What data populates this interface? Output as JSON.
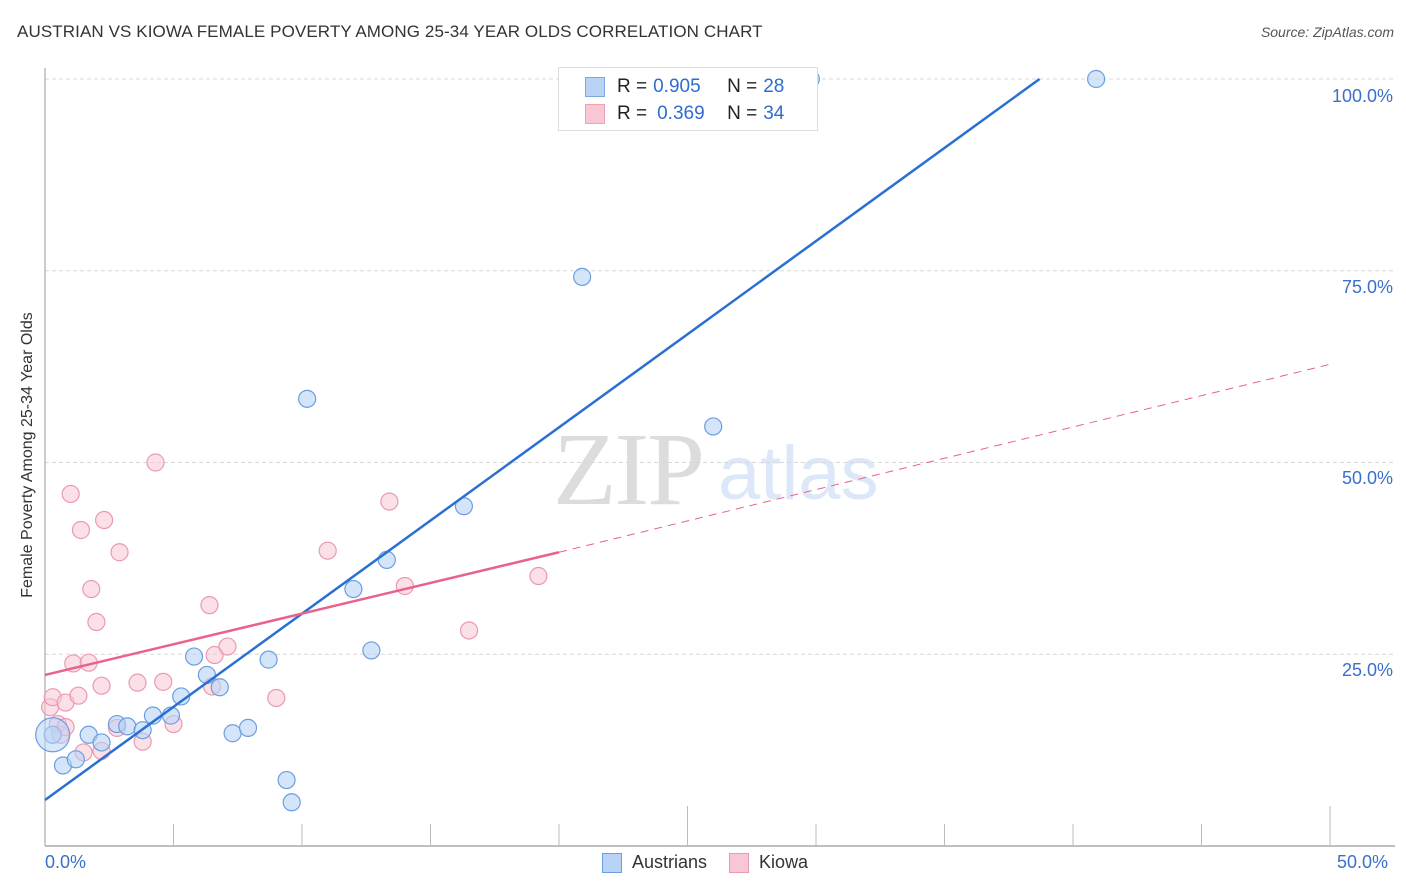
{
  "title": "AUSTRIAN VS KIOWA FEMALE POVERTY AMONG 25-34 YEAR OLDS CORRELATION CHART",
  "source": "Source: ZipAtlas.com",
  "watermark": {
    "zip": "ZIP",
    "atlas": "atlas"
  },
  "legend": {
    "rows": [
      {
        "r_label": "R = ",
        "r_value": "0.905",
        "n_label": "N = ",
        "n_value": "28",
        "swatch_fill": "#b8d3f5",
        "swatch_border": "#7aa8e0"
      },
      {
        "r_label": "R = ",
        "r_value": "0.369",
        "n_label": "N = ",
        "n_value": "34",
        "swatch_fill": "#f9c6d5",
        "swatch_border": "#eea2b8"
      }
    ]
  },
  "bottom_legend": [
    {
      "label": "Austrians",
      "fill": "#b8d3f5",
      "border": "#6b9ee0"
    },
    {
      "label": "Kiowa",
      "fill": "#f9c6d5",
      "border": "#e99ab1"
    }
  ],
  "axes": {
    "y_label": "Female Poverty Among 25-34 Year Olds",
    "y_ticks": [
      "100.0%",
      "75.0%",
      "50.0%",
      "25.0%"
    ],
    "x_ticks": [
      "0.0%",
      "50.0%"
    ]
  },
  "colors": {
    "austrians": "#2a70d2",
    "kiowa": "#e8628c",
    "tick_text": "#3a70c8"
  },
  "chart_data": {
    "type": "scatter",
    "title": "AUSTRIAN VS KIOWA FEMALE POVERTY AMONG 25-34 YEAR OLDS CORRELATION CHART",
    "xlabel": "",
    "ylabel": "Female Poverty Among 25-34 Year Olds",
    "xlim": [
      0,
      50
    ],
    "ylim": [
      0,
      100
    ],
    "x_tick_labels": [
      "0.0%",
      "50.0%"
    ],
    "y_tick_labels": [
      "25.0%",
      "50.0%",
      "75.0%",
      "100.0%"
    ],
    "grid": "horizontal dashed at 25/50/75/100",
    "legend_position": "top-center (stats) and bottom-center (series)",
    "series": [
      {
        "name": "Austrians",
        "color": "#2a70d2",
        "R": 0.905,
        "N": 28,
        "points": [
          [
            0.3,
            14.5
          ],
          [
            0.7,
            10.5
          ],
          [
            1.2,
            11.3
          ],
          [
            1.7,
            14.5
          ],
          [
            2.2,
            13.5
          ],
          [
            2.8,
            15.9
          ],
          [
            3.2,
            15.6
          ],
          [
            3.8,
            15.1
          ],
          [
            4.2,
            17.0
          ],
          [
            4.9,
            17.0
          ],
          [
            5.3,
            19.5
          ],
          [
            5.8,
            24.7
          ],
          [
            6.3,
            22.3
          ],
          [
            6.8,
            20.7
          ],
          [
            7.3,
            14.7
          ],
          [
            7.9,
            15.4
          ],
          [
            8.7,
            24.3
          ],
          [
            9.4,
            8.6
          ],
          [
            9.6,
            5.7
          ],
          [
            10.2,
            58.3
          ],
          [
            12.0,
            33.5
          ],
          [
            12.7,
            25.5
          ],
          [
            13.3,
            37.3
          ],
          [
            16.3,
            44.3
          ],
          [
            20.9,
            74.2
          ],
          [
            26.0,
            54.7
          ],
          [
            29.8,
            100.0
          ],
          [
            40.9,
            100.0
          ]
        ],
        "trendline": {
          "x": [
            0,
            38.7
          ],
          "y": [
            6.0,
            100.0
          ],
          "style": "solid"
        }
      },
      {
        "name": "Kiowa",
        "color": "#e8628c",
        "R": 0.369,
        "N": 34,
        "points": [
          [
            0.2,
            18.1
          ],
          [
            0.3,
            19.4
          ],
          [
            0.5,
            15.9
          ],
          [
            0.6,
            14.5
          ],
          [
            0.8,
            15.5
          ],
          [
            0.8,
            18.7
          ],
          [
            1.0,
            45.9
          ],
          [
            1.1,
            23.8
          ],
          [
            1.3,
            19.6
          ],
          [
            1.4,
            41.2
          ],
          [
            1.5,
            12.2
          ],
          [
            1.7,
            23.9
          ],
          [
            1.8,
            33.5
          ],
          [
            2.0,
            29.2
          ],
          [
            2.2,
            12.4
          ],
          [
            2.2,
            20.9
          ],
          [
            2.3,
            42.5
          ],
          [
            2.8,
            15.4
          ],
          [
            2.9,
            38.3
          ],
          [
            3.6,
            21.3
          ],
          [
            3.8,
            13.6
          ],
          [
            4.3,
            50.0
          ],
          [
            4.6,
            21.4
          ],
          [
            5.0,
            15.9
          ],
          [
            6.4,
            31.4
          ],
          [
            6.5,
            20.8
          ],
          [
            6.6,
            24.9
          ],
          [
            7.1,
            26.0
          ],
          [
            9.0,
            19.3
          ],
          [
            11.0,
            38.5
          ],
          [
            13.4,
            44.9
          ],
          [
            14.0,
            33.9
          ],
          [
            16.5,
            28.1
          ],
          [
            19.2,
            35.2
          ]
        ],
        "trendline": {
          "x": [
            0,
            20
          ],
          "y": [
            22.3,
            38.3
          ],
          "style": "solid"
        },
        "trendline_extension": {
          "x": [
            20,
            50
          ],
          "y": [
            38.3,
            62.8
          ],
          "style": "dashed"
        }
      }
    ]
  }
}
